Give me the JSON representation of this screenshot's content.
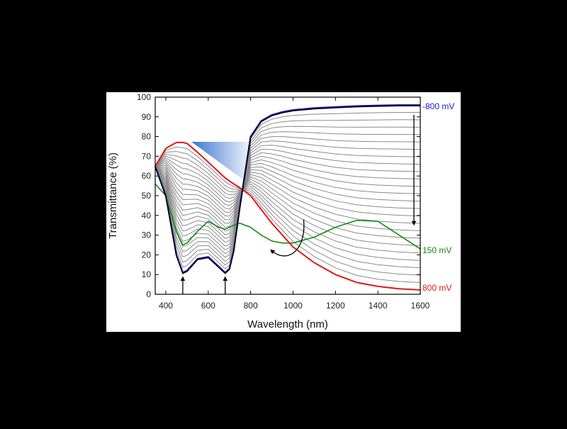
{
  "chart_data": {
    "type": "line",
    "xlabel": "Wavelength (nm)",
    "ylabel": "Transmittance (%)",
    "xlim": [
      350,
      1600
    ],
    "ylim": [
      0,
      100
    ],
    "xticks": [
      400,
      600,
      800,
      1000,
      1200,
      1400,
      1600
    ],
    "yticks": [
      0,
      10,
      20,
      30,
      40,
      50,
      60,
      70,
      80,
      90,
      100
    ],
    "grid": false,
    "legend": "none",
    "x": [
      350,
      400,
      450,
      480,
      500,
      550,
      600,
      650,
      680,
      700,
      720,
      750,
      800,
      850,
      900,
      950,
      1000,
      1100,
      1200,
      1300,
      1400,
      1500,
      1600
    ],
    "series": [
      {
        "name": "-800 mV",
        "color": "#1a1ac8",
        "values": [
          65,
          50,
          20,
          11,
          12,
          18,
          19,
          14,
          11,
          13,
          22,
          45,
          80,
          88,
          91,
          92.5,
          93.5,
          94.5,
          95,
          95.5,
          95.8,
          96,
          96
        ]
      },
      {
        "name": "150 mV",
        "color": "#128a12",
        "values": [
          56,
          50,
          32,
          25,
          26,
          32,
          37,
          34,
          33,
          34,
          35,
          36,
          34,
          30,
          27,
          26,
          26,
          29,
          34,
          37.5,
          37,
          30,
          23
        ]
      },
      {
        "name": "800 mV",
        "color": "#e01818",
        "values": [
          65,
          74,
          77,
          77,
          76.5,
          72,
          67,
          62,
          59,
          57.5,
          56,
          54,
          50,
          43,
          36,
          30,
          24,
          16,
          10,
          6,
          4,
          2.8,
          2.2
        ]
      }
    ],
    "gray_series_count": 24,
    "gray_color": "#8a8a8a",
    "annotations": [
      {
        "type": "arrow-up",
        "x": 480,
        "y_from": 0,
        "y_to": 8
      },
      {
        "type": "arrow-up",
        "x": 680,
        "y_from": 0,
        "y_to": 8
      },
      {
        "type": "arrow-down",
        "x": 1570,
        "y_from": 91,
        "y_to": 36
      },
      {
        "type": "curved-arrow",
        "x_from": 1050,
        "y_from": 38,
        "x_to": 900,
        "y_to": 22
      }
    ]
  }
}
